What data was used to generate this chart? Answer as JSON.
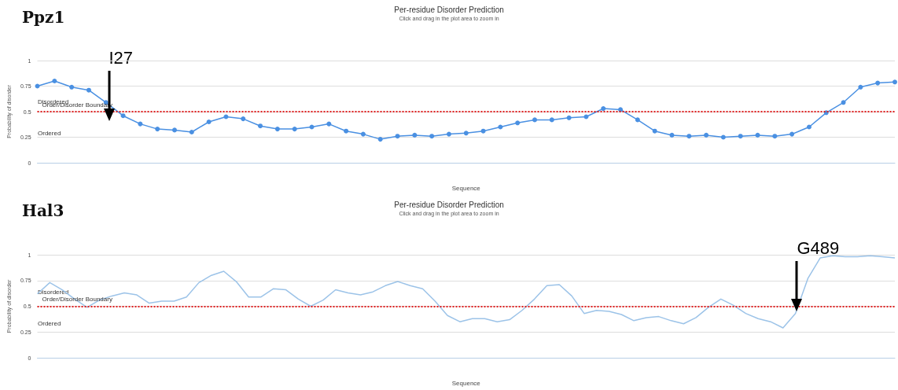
{
  "chart_data": [
    {
      "type": "line",
      "title": "Per-residue Disorder Prediction",
      "subtitle": "Click and drag in the plot area to zoom in",
      "xlabel": "Sequence",
      "ylabel": "Probability of disorder",
      "annotations": [
        "Ppz1",
        "Disordered",
        "Ordered",
        {
          "text": "I27",
          "y": 0.5
        }
      ],
      "categories": [
        null,
        null,
        null,
        null,
        null,
        null,
        null,
        null,
        null,
        null,
        null,
        null,
        null,
        null,
        null,
        null,
        null,
        null,
        null,
        null,
        null,
        null,
        null,
        null,
        null,
        null,
        null,
        null,
        null,
        null,
        null,
        null,
        null,
        null,
        null,
        null,
        null,
        null,
        null,
        null,
        null,
        null,
        null,
        null,
        null,
        null,
        null,
        null,
        null,
        null,
        null
      ],
      "series": [
        {
          "color": "#4a90e2",
          "values": [
            0.75,
            0.8,
            0.74,
            0.71,
            0.59,
            0.46,
            0.38,
            0.33,
            0.32,
            0.3,
            0.4,
            0.45,
            0.43,
            0.36,
            0.33,
            0.33,
            0.35,
            0.38,
            0.31,
            0.28,
            0.23,
            0.26,
            0.27,
            0.26,
            0.28,
            0.29,
            0.31,
            0.35,
            0.39,
            0.42,
            0.42,
            0.44,
            0.45,
            0.53,
            0.52,
            0.42,
            0.31,
            0.27,
            0.26,
            0.27,
            0.25,
            0.26,
            0.27,
            0.26,
            0.28,
            0.35,
            0.49,
            0.59,
            0.74,
            0.78,
            0.79
          ]
        }
      ],
      "ylim": [
        0,
        1
      ],
      "yticks": [
        0,
        0.25,
        0.5,
        0.75,
        1
      ],
      "grid": "y",
      "tick_labels": "y",
      "marker": "circle",
      "ref_lines": [
        {
          "axis": "y",
          "value": 0.5,
          "label": "Order/Disorder Boundary",
          "color": "#e02020",
          "line_style": "dotted"
        }
      ]
    },
    {
      "type": "line",
      "title": "Per-residue Disorder Prediction",
      "subtitle": "Click and drag in the plot area to zoom in",
      "xlabel": "Sequence",
      "ylabel": "Probability of disorder",
      "annotations": [
        "Hal3",
        "Disordered",
        "Ordered",
        {
          "text": "G489",
          "y": 0.5
        }
      ],
      "categories": [
        null,
        null,
        null,
        null,
        null,
        null,
        null,
        null,
        null,
        null,
        null,
        null,
        null,
        null,
        null,
        null,
        null,
        null,
        null,
        null,
        null,
        null,
        null,
        null,
        null,
        null,
        null,
        null,
        null,
        null,
        null,
        null,
        null,
        null,
        null,
        null,
        null,
        null,
        null,
        null,
        null,
        null,
        null,
        null,
        null,
        null,
        null,
        null,
        null,
        null,
        null,
        null,
        null,
        null,
        null,
        null,
        null,
        null,
        null,
        null,
        null,
        null,
        null,
        null,
        null,
        null,
        null,
        null,
        null,
        null
      ],
      "series": [
        {
          "color": "#9cc3e8",
          "values": [
            0.62,
            0.73,
            0.66,
            0.57,
            0.49,
            0.56,
            0.6,
            0.63,
            0.61,
            0.53,
            0.55,
            0.55,
            0.59,
            0.73,
            0.8,
            0.84,
            0.74,
            0.59,
            0.59,
            0.67,
            0.66,
            0.57,
            0.5,
            0.56,
            0.66,
            0.63,
            0.61,
            0.64,
            0.7,
            0.74,
            0.7,
            0.67,
            0.55,
            0.41,
            0.35,
            0.38,
            0.38,
            0.35,
            0.37,
            0.46,
            0.57,
            0.7,
            0.71,
            0.6,
            0.43,
            0.46,
            0.45,
            0.42,
            0.36,
            0.39,
            0.4,
            0.36,
            0.33,
            0.39,
            0.49,
            0.57,
            0.51,
            0.43,
            0.38,
            0.35,
            0.29,
            0.43,
            0.77,
            0.97,
            0.99,
            0.98,
            0.98,
            0.99,
            0.98,
            0.97
          ]
        }
      ],
      "ylim": [
        0,
        1
      ],
      "yticks": [
        0,
        0.25,
        0.5,
        0.75,
        1
      ],
      "grid": "y",
      "tick_labels": "y",
      "ref_lines": [
        {
          "axis": "y",
          "value": 0.5,
          "label": "Order/Disorder Boundary",
          "color": "#e02020",
          "line_style": "dotted"
        }
      ]
    }
  ]
}
